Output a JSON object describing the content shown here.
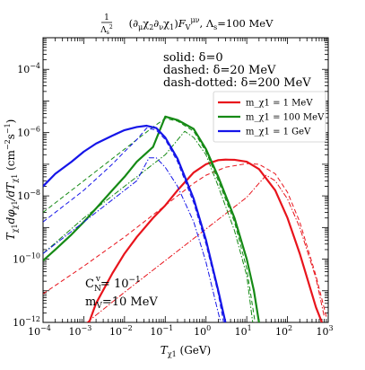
{
  "chart_data": {
    "type": "line",
    "title": "1/Λ_s² (∂_μχ₂∂_νχ₁) F_V^{μν}, Λ_s=100 MeV",
    "xlabel": "T_χ1 (GeV)",
    "ylabel": "T_χ1 dφ_χ1/dT_χ1 (cm⁻²s⁻¹)",
    "xscale": "log",
    "yscale": "log",
    "xlim": [
      0.0001,
      1000
    ],
    "ylim": [
      1e-12,
      0.001
    ],
    "x_ticks": [
      {
        "v": 0.0001,
        "m": "10",
        "e": "−4"
      },
      {
        "v": 0.001,
        "m": "10",
        "e": "−3"
      },
      {
        "v": 0.01,
        "m": "10",
        "e": "−2"
      },
      {
        "v": 0.1,
        "m": "10",
        "e": "−1"
      },
      {
        "v": 1,
        "m": "10",
        "e": "0"
      },
      {
        "v": 10,
        "m": "10",
        "e": "1"
      },
      {
        "v": 100,
        "m": "10",
        "e": "2"
      },
      {
        "v": 1000,
        "m": "10",
        "e": "3"
      }
    ],
    "y_ticks": [
      {
        "v": 1e-12,
        "m": "10",
        "e": "−12"
      },
      {
        "v": 1e-10,
        "m": "10",
        "e": "−10"
      },
      {
        "v": 1e-08,
        "m": "10",
        "e": "−8"
      },
      {
        "v": 1e-06,
        "m": "10",
        "e": "−6"
      },
      {
        "v": 0.0001,
        "m": "10",
        "e": "−4"
      }
    ],
    "annotations": {
      "style_solid": "solid: δ=0",
      "style_dashed": "dashed: δ=20 MeV",
      "style_dashdot": "dash-dotted: δ=200 MeV",
      "coupling": "C_N^v = 10^{-1}",
      "mass": "m_V=10 MeV"
    },
    "legend_position": "upper-right",
    "series": [
      {
        "name": "m_χ1 = 1 MeV",
        "color": "#e8141c",
        "style": "solid",
        "points": [
          [
            0.00135,
            1e-12
          ],
          [
            0.002,
            4e-12
          ],
          [
            0.005,
            3.5e-11
          ],
          [
            0.01,
            1.5e-10
          ],
          [
            0.02,
            5e-10
          ],
          [
            0.05,
            2e-09
          ],
          [
            0.1,
            5e-09
          ],
          [
            0.2,
            1.5e-08
          ],
          [
            0.5,
            5.5e-08
          ],
          [
            1,
            1e-07
          ],
          [
            2,
            1.35e-07
          ],
          [
            3,
            1.4e-07
          ],
          [
            5,
            1.38e-07
          ],
          [
            10,
            1.2e-07
          ],
          [
            20,
            7e-08
          ],
          [
            50,
            1.5e-08
          ],
          [
            100,
            2e-09
          ],
          [
            200,
            1.5e-10
          ],
          [
            500,
            3e-12
          ],
          [
            700,
            1e-12
          ]
        ]
      },
      {
        "name": "m_χ1 = 1 MeV",
        "color": "#e8141c",
        "style": "dashed",
        "points": [
          [
            0.0001,
            8e-12
          ],
          [
            0.001,
            6e-11
          ],
          [
            0.01,
            5e-10
          ],
          [
            0.1,
            5e-09
          ],
          [
            0.5,
            2.5e-08
          ],
          [
            1,
            4.5e-08
          ],
          [
            3,
            8e-08
          ],
          [
            10,
            1.05e-07
          ],
          [
            20,
            1e-07
          ],
          [
            50,
            5e-08
          ],
          [
            100,
            1.3e-08
          ],
          [
            200,
            1.5e-09
          ],
          [
            500,
            3e-11
          ],
          [
            900,
            1.5e-12
          ]
        ]
      },
      {
        "name": "m_χ1 = 1 MeV",
        "color": "#e8141c",
        "style": "dashdot",
        "points": [
          [
            0.0012,
            1e-12
          ],
          [
            0.01,
            9e-12
          ],
          [
            0.1,
            9e-11
          ],
          [
            1,
            9e-10
          ],
          [
            5,
            4.5e-09
          ],
          [
            10,
            9e-09
          ],
          [
            20,
            2.5e-08
          ],
          [
            30,
            4.5e-08
          ],
          [
            50,
            3e-08
          ],
          [
            100,
            8e-09
          ],
          [
            200,
            1e-09
          ],
          [
            500,
            2.5e-11
          ],
          [
            800,
            1.5e-12
          ]
        ]
      },
      {
        "name": "m_χ1 = 100 MeV",
        "color": "#158a15",
        "style": "solid",
        "points": [
          [
            0.0001,
            9e-11
          ],
          [
            0.0002,
            2e-10
          ],
          [
            0.0005,
            6e-10
          ],
          [
            0.001,
            1.5e-09
          ],
          [
            0.002,
            4e-09
          ],
          [
            0.005,
            1.5e-08
          ],
          [
            0.01,
            4e-08
          ],
          [
            0.02,
            1.2e-07
          ],
          [
            0.05,
            3.5e-07
          ],
          [
            0.1,
            3.2e-06
          ],
          [
            0.2,
            2.5e-06
          ],
          [
            0.5,
            1.3e-06
          ],
          [
            1,
            3e-07
          ],
          [
            2,
            4e-08
          ],
          [
            5,
            2e-09
          ],
          [
            10,
            1e-10
          ],
          [
            15,
            1e-11
          ],
          [
            20,
            1e-12
          ]
        ]
      },
      {
        "name": "m_χ1 = 100 MeV",
        "color": "#158a15",
        "style": "dashed",
        "points": [
          [
            0.0001,
            3e-09
          ],
          [
            0.001,
            3e-08
          ],
          [
            0.01,
            3e-07
          ],
          [
            0.05,
            1.5e-06
          ],
          [
            0.1,
            2.8e-06
          ],
          [
            0.2,
            2.3e-06
          ],
          [
            0.5,
            1.1e-06
          ],
          [
            1,
            2.5e-07
          ],
          [
            2,
            3e-08
          ],
          [
            5,
            1.5e-09
          ],
          [
            10,
            5e-11
          ],
          [
            16,
            1e-12
          ]
        ]
      },
      {
        "name": "m_χ1 = 100 MeV",
        "color": "#158a15",
        "style": "dashdot",
        "points": [
          [
            0.0001,
            1.5e-10
          ],
          [
            0.001,
            2e-09
          ],
          [
            0.01,
            2e-08
          ],
          [
            0.1,
            2e-07
          ],
          [
            0.3,
            1.1e-06
          ],
          [
            0.5,
            7e-07
          ],
          [
            1,
            2e-07
          ],
          [
            2,
            2e-08
          ],
          [
            5,
            8e-10
          ],
          [
            10,
            3e-11
          ],
          [
            14,
            1e-12
          ]
        ]
      },
      {
        "name": "m_χ1 = 1 GeV",
        "color": "#1515e8",
        "style": "solid",
        "points": [
          [
            0.0001,
            2e-08
          ],
          [
            0.0002,
            5e-08
          ],
          [
            0.0005,
            1.2e-07
          ],
          [
            0.001,
            2.5e-07
          ],
          [
            0.002,
            4.5e-07
          ],
          [
            0.005,
            8e-07
          ],
          [
            0.01,
            1.2e-06
          ],
          [
            0.02,
            1.5e-06
          ],
          [
            0.035,
            1.65e-06
          ],
          [
            0.06,
            1.4e-06
          ],
          [
            0.1,
            7e-07
          ],
          [
            0.2,
            1.5e-07
          ],
          [
            0.5,
            8e-09
          ],
          [
            1,
            4e-10
          ],
          [
            2,
            1e-11
          ],
          [
            3,
            1e-12
          ]
        ]
      },
      {
        "name": "m_χ1 = 1 GeV",
        "color": "#1515e8",
        "style": "dashed",
        "points": [
          [
            0.0001,
            1.5e-09
          ],
          [
            0.001,
            1.5e-08
          ],
          [
            0.005,
            1e-07
          ],
          [
            0.01,
            2.5e-07
          ],
          [
            0.02,
            6e-07
          ],
          [
            0.035,
            1.4e-06
          ],
          [
            0.06,
            1.2e-06
          ],
          [
            0.1,
            6e-07
          ],
          [
            0.2,
            1.2e-07
          ],
          [
            0.5,
            6e-09
          ],
          [
            1,
            3e-10
          ],
          [
            2,
            8e-12
          ],
          [
            2.7,
            1e-12
          ]
        ]
      },
      {
        "name": "m_χ1 = 1 GeV",
        "color": "#1515e8",
        "style": "dashdot",
        "points": [
          [
            0.0001,
            1.5e-10
          ],
          [
            0.001,
            1.5e-09
          ],
          [
            0.01,
            1.5e-08
          ],
          [
            0.02,
            3e-08
          ],
          [
            0.04,
            1.6e-07
          ],
          [
            0.06,
            1.6e-07
          ],
          [
            0.1,
            8e-08
          ],
          [
            0.2,
            2e-08
          ],
          [
            0.5,
            1.5e-09
          ],
          [
            1,
            8e-11
          ],
          [
            2,
            2e-12
          ],
          [
            2.3,
            1e-12
          ]
        ]
      }
    ],
    "legend": [
      {
        "label": "m_χ1 = 1  MeV",
        "color": "#e8141c"
      },
      {
        "label": "m_χ1 = 100  MeV",
        "color": "#158a15"
      },
      {
        "label": "m_χ1 = 1  GeV",
        "color": "#1515e8"
      }
    ]
  }
}
